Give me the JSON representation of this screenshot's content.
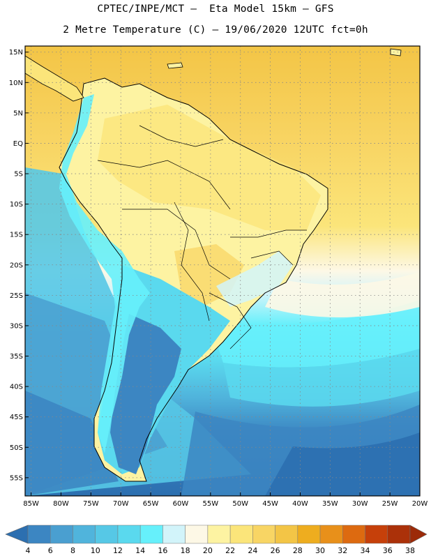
{
  "header": {
    "line1": "CPTEC/INPE/MCT –  Eta Model 15km – GFS",
    "line2": "2 Metre Temperature (C) – 19/06/2020 12UTC fct=0h"
  },
  "axes": {
    "lat_labels": [
      "15N",
      "10N",
      "5N",
      "EQ",
      "5S",
      "10S",
      "15S",
      "20S",
      "25S",
      "30S",
      "35S",
      "40S",
      "45S",
      "50S",
      "55S"
    ],
    "lat_values": [
      15,
      10,
      5,
      0,
      -5,
      -10,
      -15,
      -20,
      -25,
      -30,
      -35,
      -40,
      -45,
      -50,
      -55
    ],
    "lon_labels": [
      "85W",
      "80W",
      "75W",
      "70W",
      "65W",
      "60W",
      "55W",
      "50W",
      "45W",
      "40W",
      "35W",
      "30W",
      "25W",
      "20W"
    ],
    "lon_values": [
      -85,
      -80,
      -75,
      -70,
      -65,
      -60,
      -55,
      -50,
      -45,
      -40,
      -35,
      -30,
      -25,
      -20
    ],
    "lat_range": [
      -58,
      16
    ],
    "lon_range": [
      -86,
      -20
    ]
  },
  "colorbar": {
    "labels": [
      "4",
      "6",
      "8",
      "10",
      "12",
      "14",
      "16",
      "18",
      "20",
      "22",
      "24",
      "26",
      "28",
      "30",
      "32",
      "34",
      "36",
      "38"
    ],
    "colors": [
      "#2c6fb0",
      "#3c86c2",
      "#4a9fd0",
      "#50b4dc",
      "#56c8e6",
      "#5ad9ee",
      "#66f0fb",
      "#d2f4fa",
      "#fdf8e6",
      "#fdf3a2",
      "#fbe57a",
      "#f8d564",
      "#f3c546",
      "#eead1f",
      "#e8901a",
      "#dd6a10",
      "#c6400a",
      "#ab3109",
      "#9c2a08"
    ]
  },
  "legend_chart_data": {
    "type": "heatmap",
    "variable": "2 Metre Temperature (C)",
    "model": "Eta Model 15km – GFS",
    "date": "19/06/2020 12UTC",
    "forecast": "fct=0h",
    "color_levels_C": [
      4,
      6,
      8,
      10,
      12,
      14,
      16,
      18,
      20,
      22,
      24,
      26,
      28,
      30,
      32,
      34,
      36,
      38
    ]
  }
}
